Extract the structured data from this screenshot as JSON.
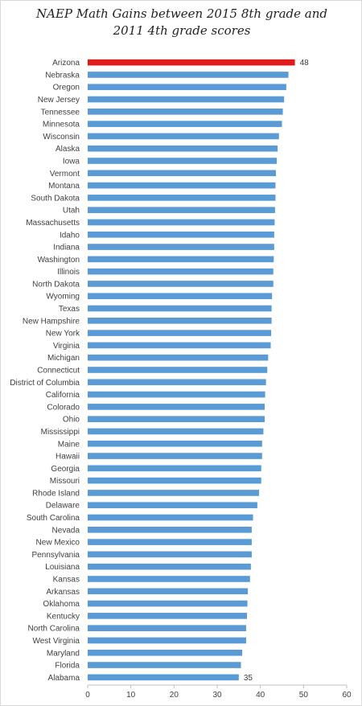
{
  "chart_data": {
    "type": "bar",
    "orientation": "horizontal",
    "title": [
      "NAEP Math Gains between 2015 8th grade and",
      "2011 4th grade scores"
    ],
    "xlabel": "",
    "ylabel": "",
    "xlim": [
      0,
      60
    ],
    "xticks": [
      "0",
      "10",
      "20",
      "30",
      "40",
      "50",
      "60"
    ],
    "grid": false,
    "legend": "none",
    "categories": [
      "Arizona",
      "Nebraska",
      "Oregon",
      "New Jersey",
      "Tennessee",
      "Minnesota",
      "Wisconsin",
      "Alaska",
      "Iowa",
      "Vermont",
      "Montana",
      "South Dakota",
      "Utah",
      "Massachusetts",
      "Idaho",
      "Indiana",
      "Washington",
      "Illinois",
      "North Dakota",
      "Wyoming",
      "Texas",
      "New Hampshire",
      "New York",
      "Virginia",
      "Michigan",
      "Connecticut",
      "District of Columbia",
      "California",
      "Colorado",
      "Ohio",
      "Mississippi",
      "Maine",
      "Hawaii",
      "Georgia",
      "Missouri",
      "Rhode Island",
      "Delaware",
      "South Carolina",
      "Nevada",
      "New Mexico",
      "Pennsylvania",
      "Louisiana",
      "Kansas",
      "Arkansas",
      "Oklahoma",
      "Kentucky",
      "North Carolina",
      "West Virginia",
      "Maryland",
      "Florida",
      "Alabama"
    ],
    "values": [
      48,
      46.5,
      46,
      45.5,
      45.2,
      45,
      44.3,
      44,
      43.8,
      43.6,
      43.5,
      43.5,
      43.4,
      43.3,
      43.2,
      43.2,
      43.1,
      43,
      43,
      42.7,
      42.6,
      42.6,
      42.5,
      42.4,
      41.8,
      41.6,
      41.3,
      41.1,
      41,
      41,
      40.7,
      40.4,
      40.4,
      40.2,
      40.2,
      39.7,
      39.3,
      38.3,
      38,
      38,
      38,
      37.8,
      37.6,
      37.1,
      37,
      36.9,
      36.7,
      36.7,
      35.8,
      35.5,
      35
    ],
    "highlight_index": 0,
    "highlight_color": "#e31a1c",
    "bar_color": "#5b9bd5",
    "data_labels": [
      {
        "index": 0,
        "text": "48"
      },
      {
        "index": 50,
        "text": "35"
      }
    ]
  }
}
